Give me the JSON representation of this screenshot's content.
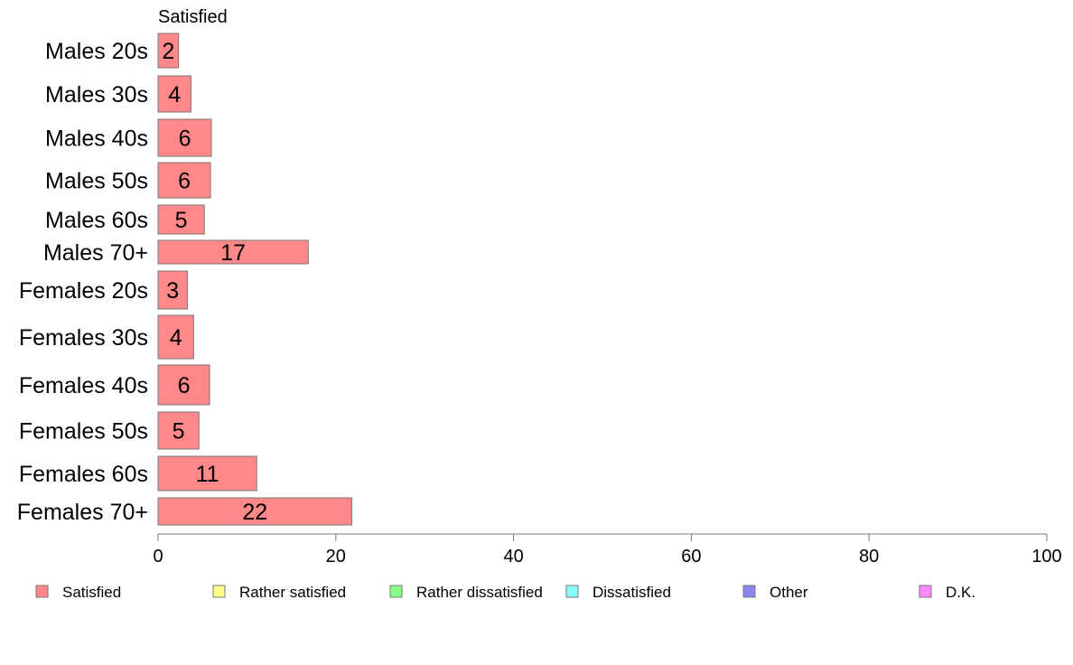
{
  "chart_data": {
    "type": "bar",
    "orientation": "horizontal",
    "series_title": "Satisfied",
    "categories": [
      "Males 20s",
      "Males 30s",
      "Males 40s",
      "Males 50s",
      "Males 60s",
      "Males 70+",
      "Females 20s",
      "Females 30s",
      "Females 40s",
      "Females 50s",
      "Females 60s",
      "Females 70+"
    ],
    "series": [
      {
        "name": "Satisfied",
        "color": "#ff8888",
        "values": [
          2.3,
          3.7,
          6.0,
          5.9,
          5.2,
          16.9,
          3.3,
          4.0,
          5.8,
          4.6,
          11.1,
          21.8
        ],
        "labels": [
          "2",
          "4",
          "6",
          "6",
          "5",
          "17",
          "3",
          "4",
          "6",
          "5",
          "11",
          "22"
        ]
      }
    ],
    "xlim": [
      0,
      100
    ],
    "x_ticks": [
      0,
      20,
      40,
      60,
      80,
      100
    ],
    "x_tick_labels": [
      "0",
      "20",
      "40",
      "60",
      "80",
      "100"
    ],
    "grid": false,
    "legend_position": "bottom",
    "legend": [
      {
        "label": "Satisfied",
        "color": "#ff8888"
      },
      {
        "label": "Rather satisfied",
        "color": "#ffff88"
      },
      {
        "label": "Rather dissatisfied",
        "color": "#88ff88"
      },
      {
        "label": "Dissatisfied",
        "color": "#88ffff"
      },
      {
        "label": "Other",
        "color": "#8888ee"
      },
      {
        "label": "D.K.",
        "color": "#ff88ff"
      }
    ]
  }
}
